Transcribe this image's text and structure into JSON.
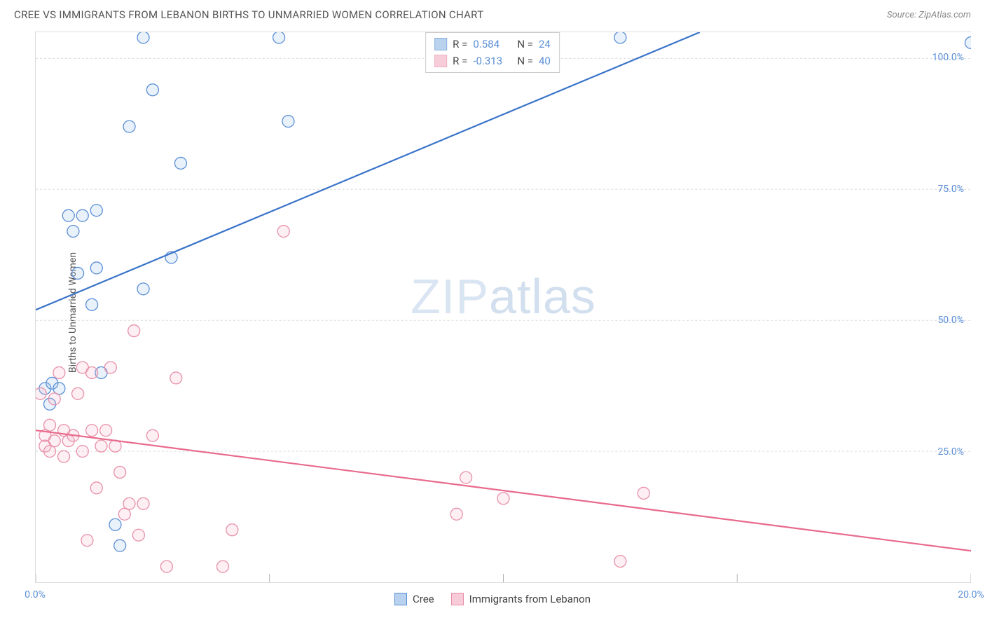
{
  "title": "CREE VS IMMIGRANTS FROM LEBANON BIRTHS TO UNMARRIED WOMEN CORRELATION CHART",
  "source": "Source: ZipAtlas.com",
  "watermark_a": "ZIP",
  "watermark_b": "atlas",
  "y_axis_label": "Births to Unmarried Women",
  "chart": {
    "type": "scatter",
    "background_color": "#ffffff",
    "grid_color": "#dcdcdc",
    "xlim": [
      0,
      20
    ],
    "ylim": [
      0,
      105
    ],
    "x_ticks": [
      0,
      5,
      10,
      15,
      20
    ],
    "x_tick_labels": [
      "0.0%",
      "",
      "",
      "",
      "20.0%"
    ],
    "y_ticks": [
      25,
      50,
      75,
      100
    ],
    "y_tick_labels": [
      "25.0%",
      "50.0%",
      "75.0%",
      "100.0%"
    ],
    "marker_radius": 8.5,
    "marker_stroke_width": 1.3,
    "marker_fill_opacity": 0.22,
    "line_width": 2.2,
    "series": [
      {
        "name": "Cree",
        "color_stroke": "#5a8fd6",
        "color_fill": "#9cc0e8",
        "line_color": "#3a73c9",
        "R": "0.584",
        "N": "24",
        "regression": {
          "x1": 0,
          "y1": 52,
          "x2": 14.2,
          "y2": 105
        },
        "points": [
          [
            0.2,
            37
          ],
          [
            0.3,
            34
          ],
          [
            0.35,
            38
          ],
          [
            0.5,
            37
          ],
          [
            0.7,
            70
          ],
          [
            0.8,
            67
          ],
          [
            0.9,
            59
          ],
          [
            1.0,
            70
          ],
          [
            1.2,
            53
          ],
          [
            1.3,
            60
          ],
          [
            1.3,
            71
          ],
          [
            1.4,
            40
          ],
          [
            1.7,
            11
          ],
          [
            1.8,
            7
          ],
          [
            2.0,
            87
          ],
          [
            2.3,
            104
          ],
          [
            2.3,
            56
          ],
          [
            2.5,
            94
          ],
          [
            2.9,
            62
          ],
          [
            3.1,
            80
          ],
          [
            5.2,
            104
          ],
          [
            5.4,
            88
          ],
          [
            12.5,
            104
          ],
          [
            20,
            103
          ]
        ]
      },
      {
        "name": "Immigrants from Lebanon",
        "color_stroke": "#e890a8",
        "color_fill": "#f5b8c9",
        "line_color": "#e86a8c",
        "R": "-0.313",
        "N": "40",
        "regression": {
          "x1": 0,
          "y1": 29,
          "x2": 20,
          "y2": 6
        },
        "points": [
          [
            0.1,
            36
          ],
          [
            0.2,
            28
          ],
          [
            0.2,
            26
          ],
          [
            0.3,
            30
          ],
          [
            0.3,
            25
          ],
          [
            0.4,
            35
          ],
          [
            0.4,
            27
          ],
          [
            0.5,
            40
          ],
          [
            0.6,
            29
          ],
          [
            0.6,
            24
          ],
          [
            0.7,
            27
          ],
          [
            0.8,
            28
          ],
          [
            0.9,
            36
          ],
          [
            1.0,
            41
          ],
          [
            1.0,
            25
          ],
          [
            1.1,
            8
          ],
          [
            1.2,
            29
          ],
          [
            1.2,
            40
          ],
          [
            1.3,
            18
          ],
          [
            1.4,
            26
          ],
          [
            1.5,
            29
          ],
          [
            1.6,
            41
          ],
          [
            1.7,
            26
          ],
          [
            1.8,
            21
          ],
          [
            1.9,
            13
          ],
          [
            2.0,
            15
          ],
          [
            2.1,
            48
          ],
          [
            2.2,
            9
          ],
          [
            2.3,
            15
          ],
          [
            2.5,
            28
          ],
          [
            2.8,
            3
          ],
          [
            3.0,
            39
          ],
          [
            4.0,
            3
          ],
          [
            4.2,
            10
          ],
          [
            5.3,
            67
          ],
          [
            9.0,
            13
          ],
          [
            9.2,
            20
          ],
          [
            10.0,
            16
          ],
          [
            12.5,
            4
          ],
          [
            13.0,
            17
          ]
        ]
      }
    ]
  },
  "stats_legend": {
    "R_label": "R =",
    "N_label": "N ="
  },
  "bottom_legend": [
    {
      "label": "Cree",
      "stroke": "#5a8fd6",
      "fill": "#b8d1ee"
    },
    {
      "label": "Immigrants from Lebanon",
      "stroke": "#e890a8",
      "fill": "#f7cbd8"
    }
  ]
}
